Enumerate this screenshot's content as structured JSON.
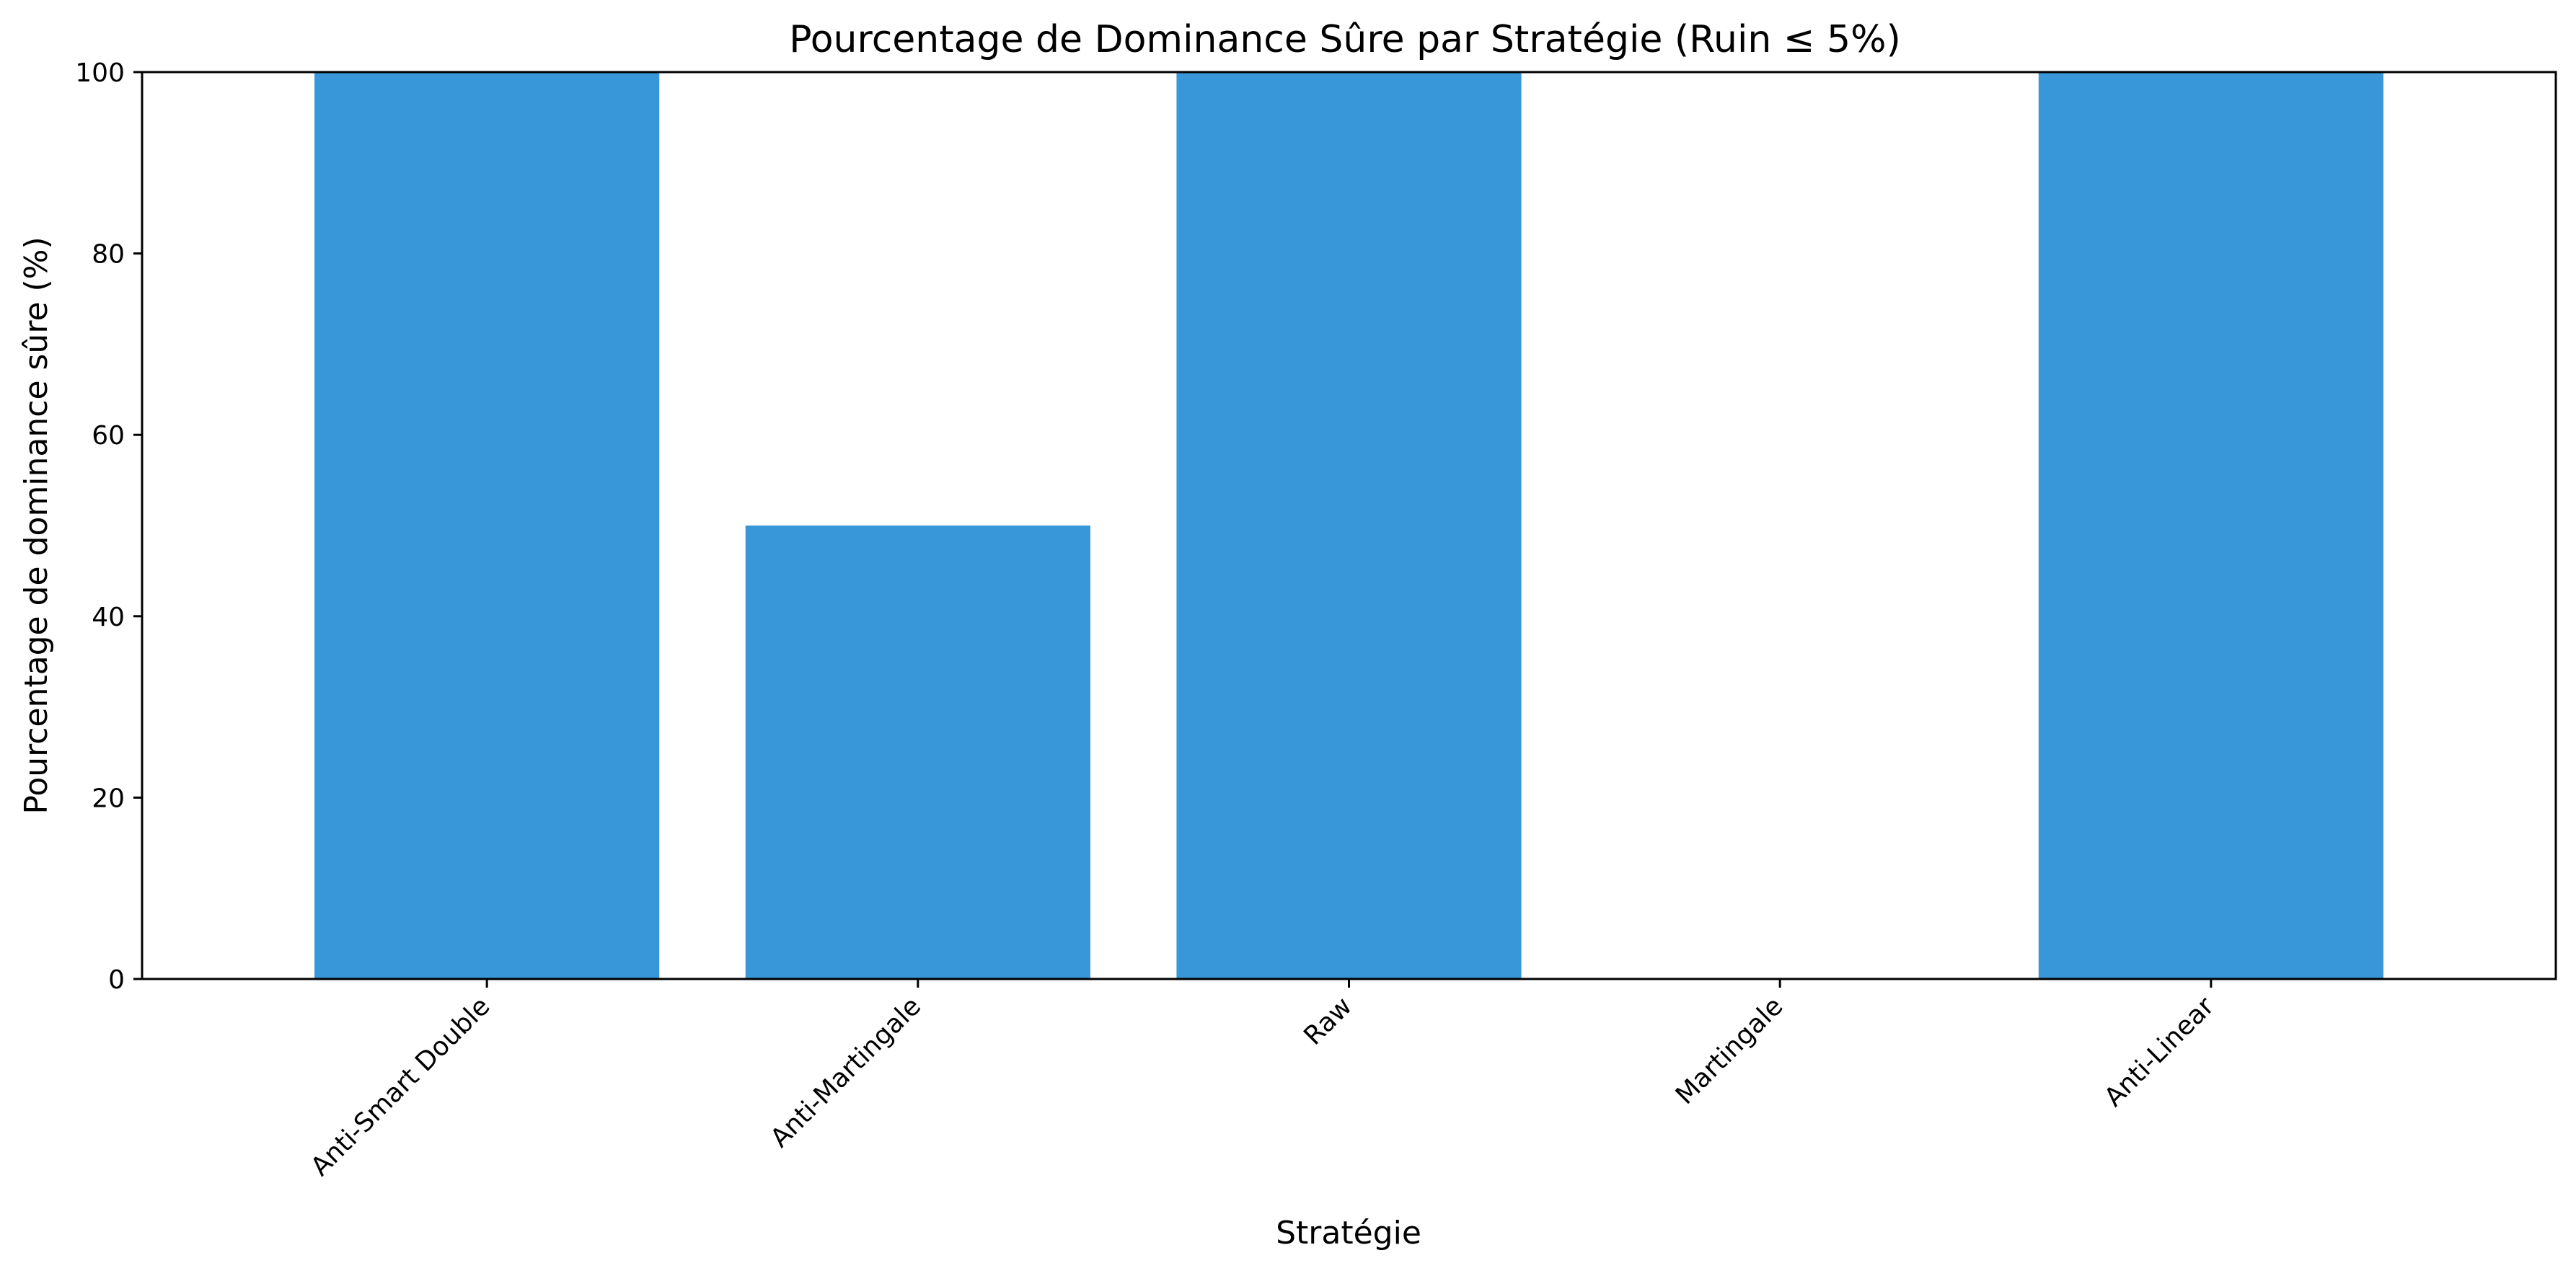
{
  "chart_data": {
    "type": "bar",
    "title": "Pourcentage de Dominance Sûre par Stratégie (Ruin ≤ 5%)",
    "xlabel": "Stratégie",
    "ylabel": "Pourcentage de dominance sûre (%)",
    "categories": [
      "Anti-Smart Double",
      "Anti-Martingale",
      "Raw",
      "Martingale",
      "Anti-Linear"
    ],
    "values": [
      100,
      50,
      100,
      0,
      100
    ],
    "ylim": [
      0,
      100
    ],
    "yticks": [
      "0",
      "20",
      "40",
      "60",
      "80",
      "100"
    ],
    "grid": false,
    "legend": "none",
    "bar_color": "#3797d9"
  }
}
